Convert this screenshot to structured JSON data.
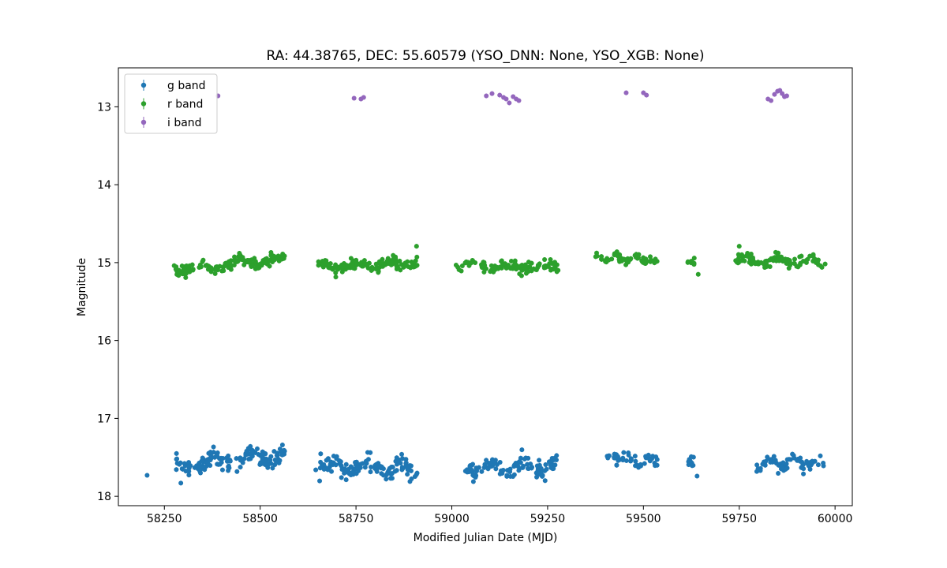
{
  "chart_data": {
    "type": "scatter",
    "title": "RA: 44.38765, DEC: 55.60579 (YSO_DNN: None, YSO_XGB: None)",
    "xlabel": "Modified Julian Date (MJD)",
    "ylabel": "Magnitude",
    "xlim": [
      58130,
      60045
    ],
    "ylim": [
      18.12,
      12.5
    ],
    "y_inverted": true,
    "xticks": [
      58250,
      58500,
      58750,
      59000,
      59250,
      59500,
      59750,
      60000
    ],
    "yticks": [
      13,
      14,
      15,
      16,
      17,
      18
    ],
    "grid": false,
    "legend_position": "top-left",
    "series": [
      {
        "name": "g band",
        "color": "#1f77b4",
        "clusters": [
          {
            "x0": 58280,
            "x1": 58565,
            "center": 17.54,
            "amp": 0.1,
            "trend": -0.12,
            "n": 150
          },
          {
            "x0": 58655,
            "x1": 58910,
            "center": 17.63,
            "amp": 0.1,
            "trend": 0.05,
            "n": 130
          },
          {
            "x0": 59035,
            "x1": 59280,
            "center": 17.62,
            "amp": 0.1,
            "trend": -0.03,
            "n": 110
          },
          {
            "x0": 59405,
            "x1": 59540,
            "center": 17.52,
            "amp": 0.06,
            "trend": 0.05,
            "n": 50
          },
          {
            "x0": 59615,
            "x1": 59640,
            "center": 17.57,
            "amp": 0.07,
            "trend": 0.1,
            "n": 10
          },
          {
            "x0": 59795,
            "x1": 59970,
            "center": 17.57,
            "amp": 0.09,
            "trend": 0.0,
            "n": 65
          }
        ],
        "points": [
          [
            58205,
            17.73
          ],
          [
            58293,
            17.83
          ],
          [
            58645,
            17.66
          ],
          [
            59640,
            17.74
          ]
        ]
      },
      {
        "name": "r band",
        "color": "#2ca02c",
        "clusters": [
          {
            "x0": 58275,
            "x1": 58565,
            "center": 15.02,
            "amp": 0.06,
            "trend": -0.12,
            "n": 170
          },
          {
            "x0": 58650,
            "x1": 58910,
            "center": 15.03,
            "amp": 0.06,
            "trend": -0.05,
            "n": 150
          },
          {
            "x0": 59010,
            "x1": 59280,
            "center": 15.05,
            "amp": 0.07,
            "trend": 0.05,
            "n": 120
          },
          {
            "x0": 59375,
            "x1": 59540,
            "center": 14.95,
            "amp": 0.05,
            "trend": 0.05,
            "n": 60
          },
          {
            "x0": 59615,
            "x1": 59635,
            "center": 14.98,
            "amp": 0.05,
            "trend": 0.05,
            "n": 8
          },
          {
            "x0": 59740,
            "x1": 59975,
            "center": 14.97,
            "amp": 0.07,
            "trend": 0.0,
            "n": 95
          }
        ],
        "points": [
          [
            58908,
            14.79
          ],
          [
            59643,
            15.15
          ],
          [
            59750,
            14.79
          ]
        ]
      },
      {
        "name": "i band",
        "color": "#9467bd",
        "points": [
          [
            58390,
            12.86
          ],
          [
            58745,
            12.89
          ],
          [
            58763,
            12.9
          ],
          [
            58770,
            12.88
          ],
          [
            59090,
            12.86
          ],
          [
            59105,
            12.83
          ],
          [
            59125,
            12.85
          ],
          [
            59135,
            12.88
          ],
          [
            59142,
            12.9
          ],
          [
            59150,
            12.95
          ],
          [
            59160,
            12.87
          ],
          [
            59168,
            12.9
          ],
          [
            59175,
            12.92
          ],
          [
            59455,
            12.82
          ],
          [
            59500,
            12.82
          ],
          [
            59508,
            12.85
          ],
          [
            59825,
            12.9
          ],
          [
            59833,
            12.92
          ],
          [
            59842,
            12.84
          ],
          [
            59850,
            12.8
          ],
          [
            59856,
            12.79
          ],
          [
            59862,
            12.83
          ],
          [
            59868,
            12.87
          ],
          [
            59874,
            12.86
          ]
        ]
      }
    ]
  }
}
